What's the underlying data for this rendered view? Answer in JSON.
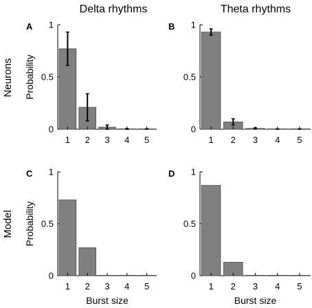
{
  "column_titles": [
    "Delta rhythms",
    "Theta rhythms"
  ],
  "row_labels": [
    "Neurons",
    "Model"
  ],
  "bar_color": "#808080",
  "chart_data": [
    {
      "panel": "A",
      "type": "bar",
      "categories": [
        "1",
        "2",
        "3",
        "4",
        "5"
      ],
      "values": [
        0.77,
        0.21,
        0.02,
        0.003,
        0.002
      ],
      "error": [
        0.16,
        0.13,
        0.02,
        0.004,
        0.003
      ],
      "ylabel": "Probability",
      "xlabel": "",
      "ylim": [
        0,
        1
      ],
      "yticks": [
        "0",
        "0.5",
        "1"
      ]
    },
    {
      "panel": "B",
      "type": "bar",
      "categories": [
        "1",
        "2",
        "3",
        "4",
        "5"
      ],
      "values": [
        0.93,
        0.07,
        0.008,
        0.002,
        0.002
      ],
      "error": [
        0.03,
        0.03,
        0.006,
        0.002,
        0.002
      ],
      "ylabel": "",
      "xlabel": "",
      "ylim": [
        0,
        1
      ],
      "yticks": [
        "0",
        "0.5",
        "1"
      ]
    },
    {
      "panel": "C",
      "type": "bar",
      "categories": [
        "1",
        "2",
        "3",
        "4",
        "5"
      ],
      "values": [
        0.73,
        0.27,
        0.003,
        0.0,
        0.0
      ],
      "error": null,
      "ylabel": "Probability",
      "xlabel": "Burst size",
      "ylim": [
        0,
        1
      ],
      "yticks": [
        "0",
        "0.5",
        "1"
      ]
    },
    {
      "panel": "D",
      "type": "bar",
      "categories": [
        "1",
        "2",
        "3",
        "4",
        "5"
      ],
      "values": [
        0.87,
        0.13,
        0.0,
        0.0,
        0.0
      ],
      "error": null,
      "ylabel": "",
      "xlabel": "Burst size",
      "ylim": [
        0,
        1
      ],
      "yticks": [
        "0",
        "0.5",
        "1"
      ]
    }
  ]
}
